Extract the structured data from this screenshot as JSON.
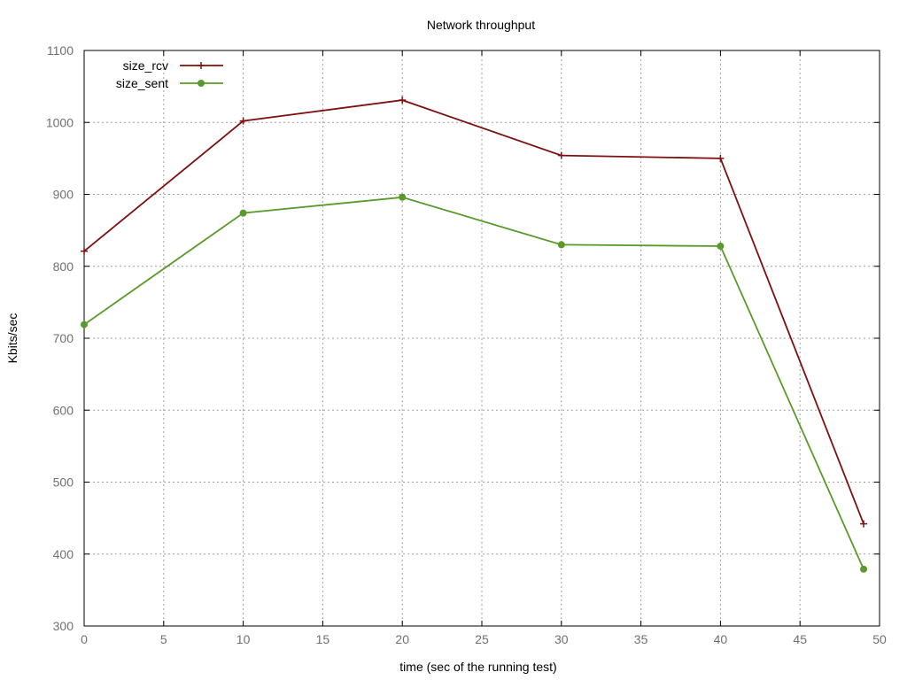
{
  "chart_data": {
    "type": "line",
    "title": "Network throughput",
    "xlabel": "time (sec of the running test)",
    "ylabel": "Kbits/sec",
    "xlim": [
      0,
      50
    ],
    "ylim": [
      300,
      1100
    ],
    "xticks": [
      0,
      5,
      10,
      15,
      20,
      25,
      30,
      35,
      40,
      45,
      50
    ],
    "yticks": [
      300,
      400,
      500,
      600,
      700,
      800,
      900,
      1000,
      1100
    ],
    "grid": true,
    "legend": "top-left",
    "series": [
      {
        "name": "size_rcv",
        "color": "#7f1010",
        "marker": "plus",
        "x": [
          0,
          10,
          20,
          30,
          40,
          49
        ],
        "y": [
          821,
          1002,
          1031,
          954,
          950,
          442
        ]
      },
      {
        "name": "size_sent",
        "color": "#5a9a2a",
        "marker": "circle",
        "x": [
          0,
          10,
          20,
          30,
          40,
          49
        ],
        "y": [
          719,
          874,
          896,
          830,
          828,
          379
        ]
      }
    ]
  }
}
